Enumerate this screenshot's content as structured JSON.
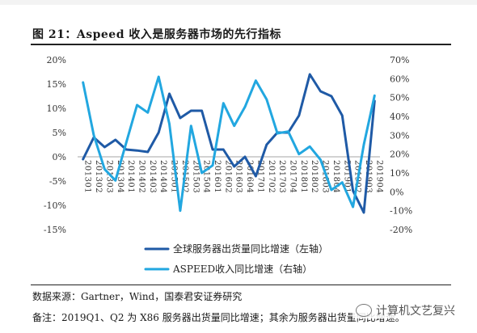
{
  "figure": {
    "title": "图 21：Aspeed 收入是服务器市场的先行指标",
    "source": "数据来源：Gartner，Wind，国泰君安证券研究",
    "note": "备注：2019Q1、Q2 为 X86 服务器出货量同比增速；其余为服务器出货量同比增速。",
    "watermark": "计算机文艺复兴"
  },
  "chart_data": {
    "type": "line",
    "categories": [
      "2013Q1",
      "2013Q2",
      "2013Q3",
      "2013Q4",
      "2014Q1",
      "2014Q2",
      "2014Q3",
      "2014Q4",
      "2015Q1",
      "2015Q2",
      "2015Q3",
      "2015Q4",
      "2016Q1",
      "2016Q2",
      "2016Q3",
      "2016Q4",
      "2017Q1",
      "2017Q2",
      "2017Q3",
      "2017Q4",
      "2018Q1",
      "2018Q2",
      "2018Q3",
      "2018Q4",
      "2019Q1",
      "2019Q2",
      "2019Q3",
      "2019Q4"
    ],
    "x_tick_labels": [
      "201301",
      "201302",
      "201303",
      "201304",
      "201401",
      "201402",
      "201403",
      "201404",
      "201501",
      "201502",
      "201503",
      "201504",
      "201601",
      "201602",
      "201603",
      "201604",
      "201701",
      "201702",
      "201703",
      "201704",
      "201801",
      "201802",
      "201803",
      "201804",
      "201901",
      "201902",
      "201903",
      "201904"
    ],
    "left_axis": {
      "ylim": [
        -15,
        20
      ],
      "ticks": [
        "-15%",
        "-10%",
        "-5%",
        "0%",
        "5%",
        "10%",
        "15%",
        "20%"
      ]
    },
    "right_axis": {
      "ylim": [
        -20,
        70
      ],
      "ticks": [
        "-20%",
        "-10%",
        "0%",
        "10%",
        "20%",
        "30%",
        "40%",
        "50%",
        "60%",
        "70%"
      ]
    },
    "series": [
      {
        "name": "全球服务器出货量同比增速（左轴）",
        "axis": "left",
        "color": "#1f5aa6",
        "values": [
          -0.5,
          4.0,
          2.0,
          3.5,
          1.5,
          1.3,
          1.0,
          5.0,
          13.0,
          8.0,
          9.5,
          9.5,
          1.5,
          1.5,
          -2.0,
          0.0,
          -4.0,
          2.5,
          5.0,
          5.0,
          8.5,
          17.0,
          13.5,
          12.5,
          8.5,
          -7.0,
          -11.5,
          11.5
        ]
      },
      {
        "name": "ASPEED收入同比增速（右轴）",
        "axis": "right",
        "color": "#22a7e0",
        "values": [
          58,
          30,
          12,
          6,
          26,
          46,
          42,
          61,
          36,
          -10,
          35,
          10,
          14,
          47,
          35,
          45,
          59,
          49,
          31,
          32,
          20,
          24,
          17,
          1,
          5,
          -8,
          25,
          51
        ]
      }
    ]
  }
}
